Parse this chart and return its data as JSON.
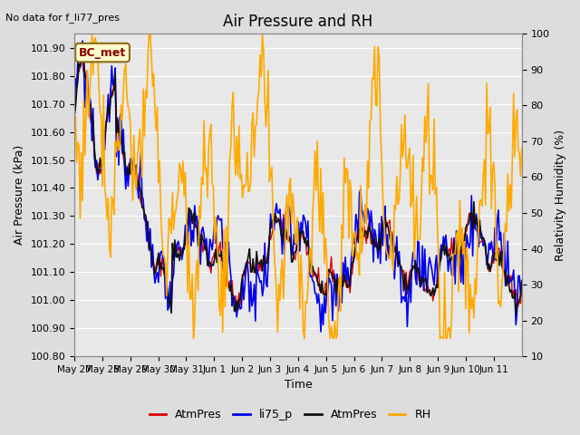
{
  "title": "Air Pressure and RH",
  "no_data_text": "No data for f_li77_pres",
  "annotation_text": "BC_met",
  "xlabel": "Time",
  "ylabel_left": "Air Pressure (kPa)",
  "ylabel_right": "Relativity Humidity (%)",
  "ylim_left": [
    100.8,
    101.95
  ],
  "ylim_right": [
    10,
    100
  ],
  "yticks_left": [
    100.8,
    100.9,
    101.0,
    101.1,
    101.2,
    101.3,
    101.4,
    101.5,
    101.6,
    101.7,
    101.8,
    101.9
  ],
  "yticks_right": [
    10,
    20,
    30,
    40,
    50,
    60,
    70,
    80,
    90,
    100
  ],
  "xtick_labels": [
    "May 27",
    "May 28",
    "May 29",
    "May 30",
    "May 31",
    "Jun 1",
    "Jun 2",
    "Jun 3",
    "Jun 4",
    "Jun 5",
    "Jun 6",
    "Jun 7",
    "Jun 8",
    "Jun 9",
    "Jun 10",
    "Jun 11"
  ],
  "n_ticks": 16,
  "line_colors": {
    "AtmPres_red": "#dd0000",
    "li75_p": "#0000ee",
    "AtmPres_black": "#111111",
    "RH": "#ffaa00"
  },
  "background_color": "#dddddd",
  "plot_bg_color": "#e8e8e8",
  "grid_color": "#ffffff",
  "legend_items": [
    "AtmPres",
    "li75_p",
    "AtmPres",
    "RH"
  ],
  "legend_colors": [
    "#dd0000",
    "#0000ee",
    "#111111",
    "#ffaa00"
  ]
}
